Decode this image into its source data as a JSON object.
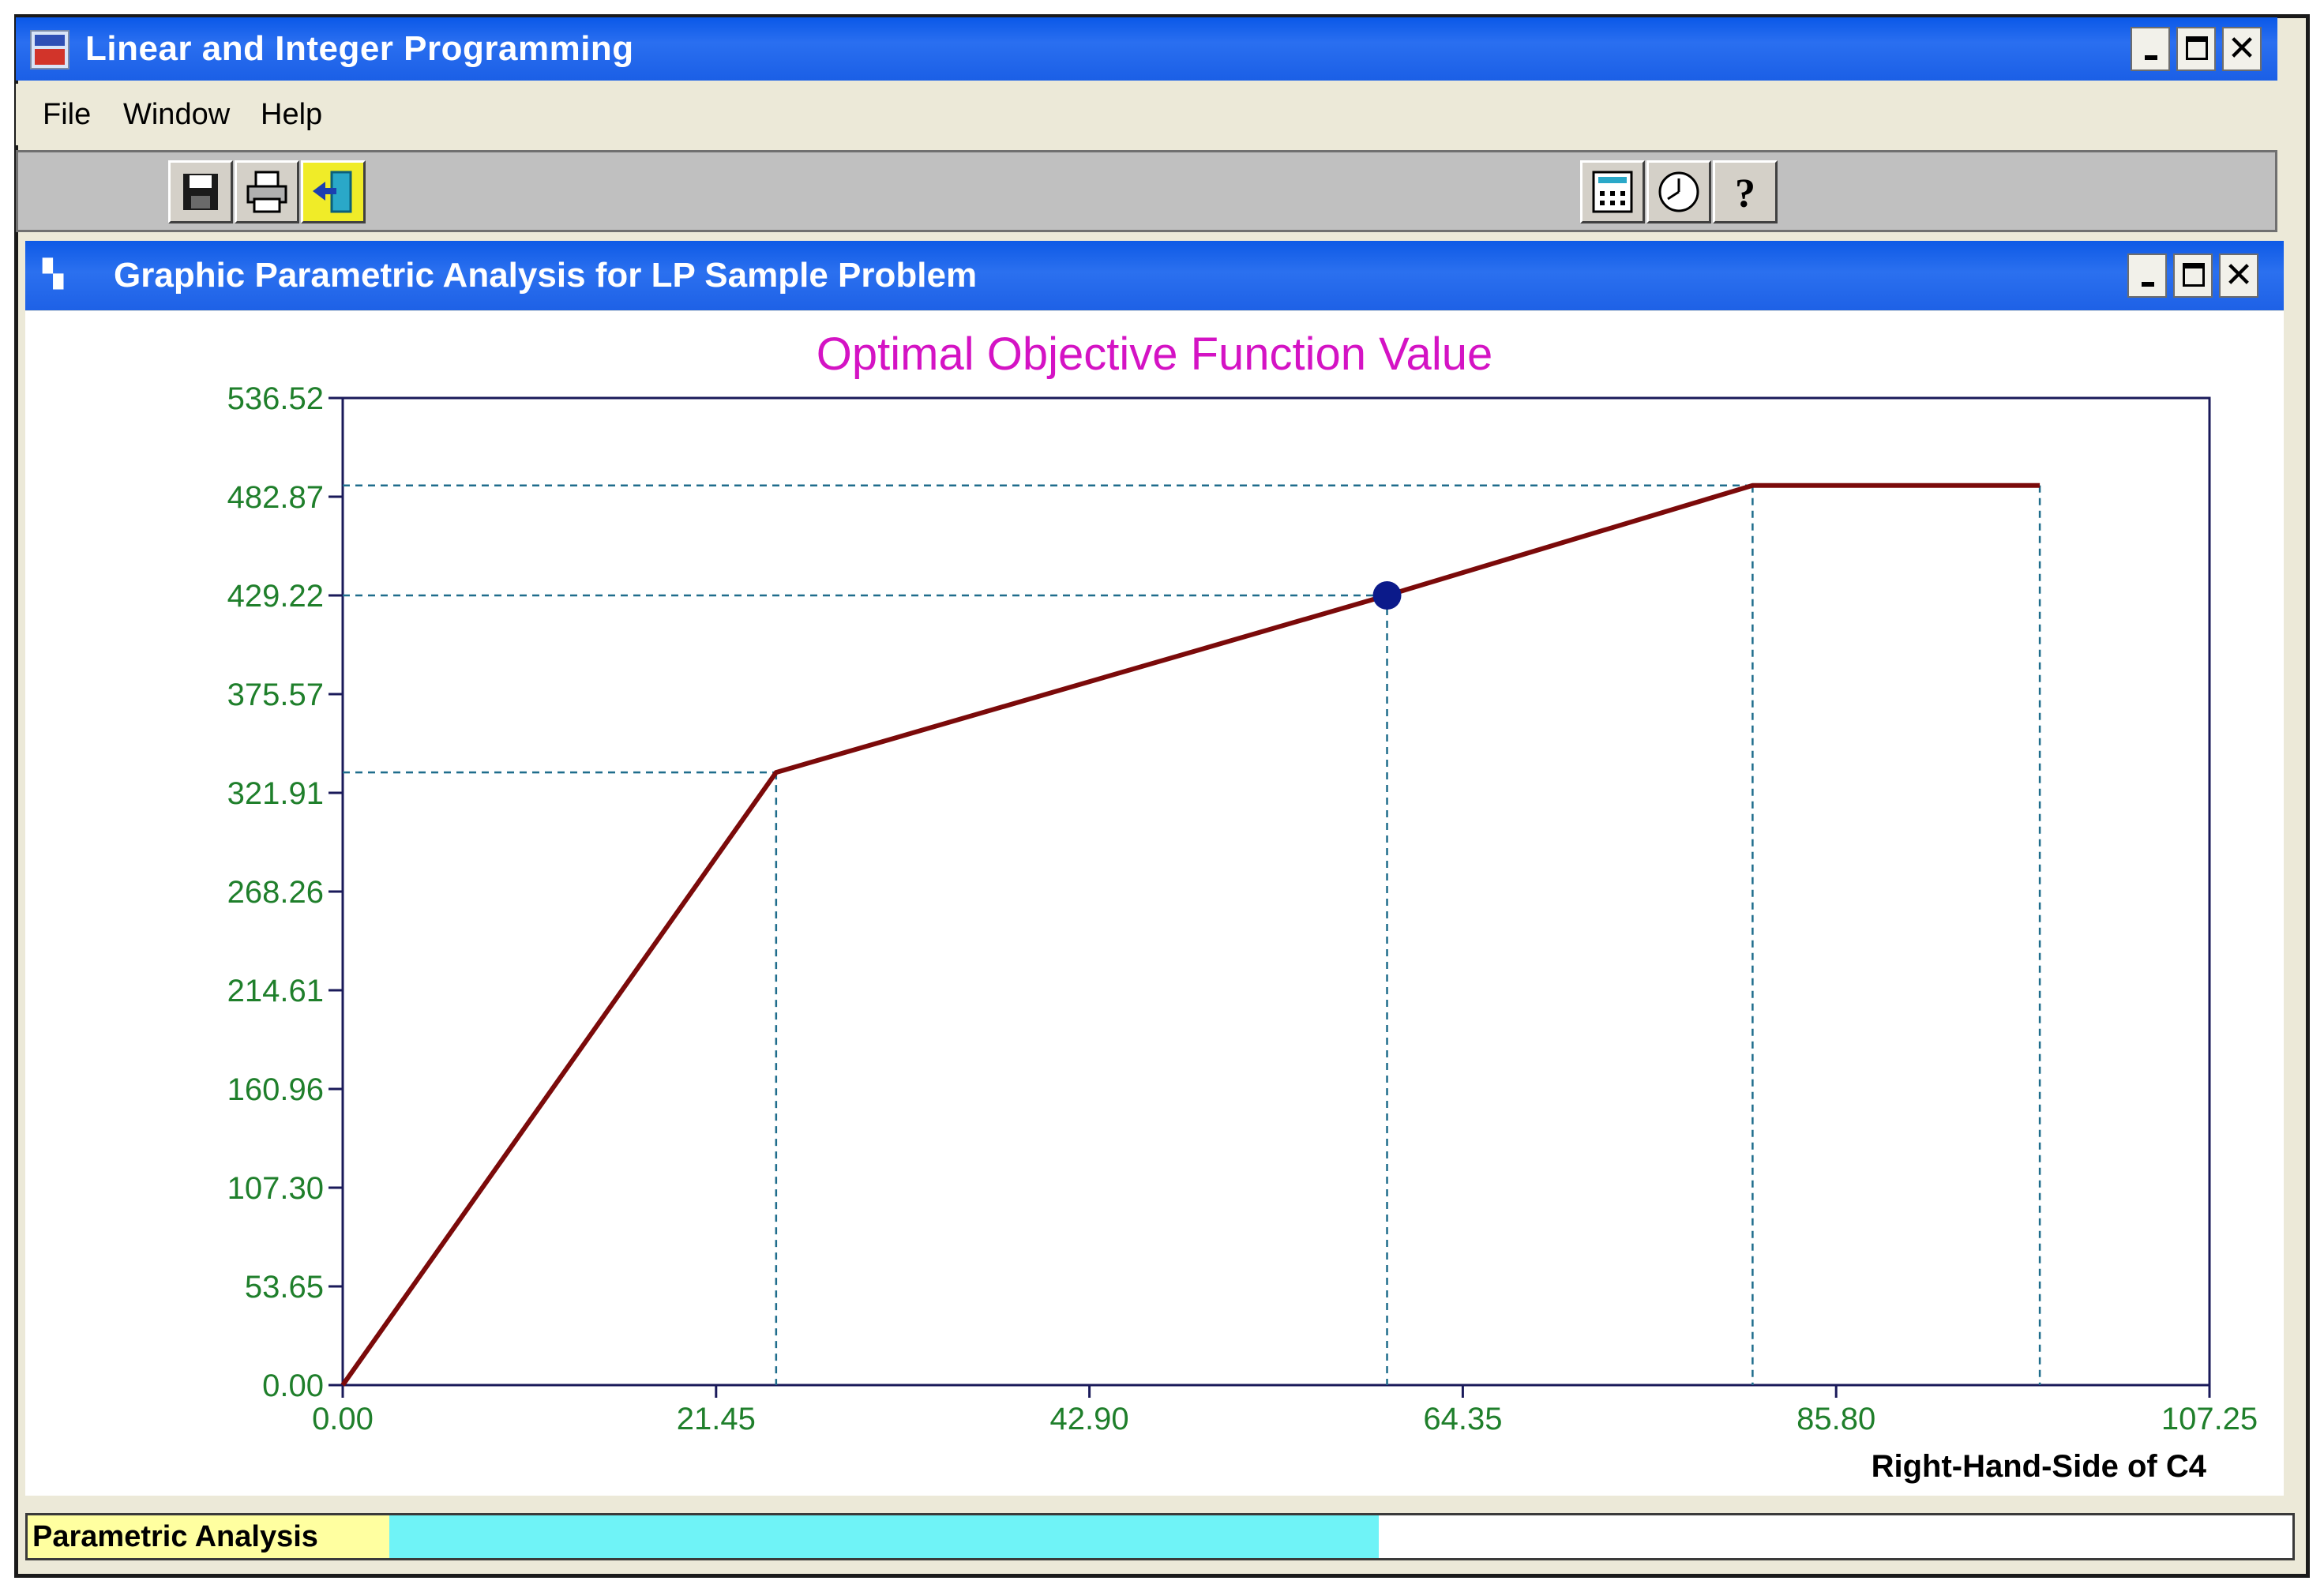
{
  "window": {
    "title": "Linear and Integer Programming"
  },
  "menu": {
    "items": [
      "File",
      "Window",
      "Help"
    ]
  },
  "toolbar": {
    "left_icons": [
      "save-icon",
      "print-icon",
      "exit-icon"
    ],
    "right_icons": [
      "calculator-icon",
      "clock-icon",
      "help-icon"
    ]
  },
  "child_window": {
    "title": "Graphic Parametric Analysis for LP Sample Problem"
  },
  "chart_data": {
    "type": "line",
    "title": "Optimal Objective Function Value",
    "xlabel": "Right-Hand-Side of C4",
    "ylabel": "",
    "xlim": [
      0,
      107.25
    ],
    "ylim": [
      0,
      536.52
    ],
    "x_ticks": [
      "0.00",
      "21.45",
      "42.90",
      "64.35",
      "85.80",
      "107.25"
    ],
    "y_ticks": [
      "536.52",
      "482.87",
      "429.22",
      "375.57",
      "321.91",
      "268.26",
      "214.61",
      "160.96",
      "107.30",
      "53.65",
      "0.00"
    ],
    "series": [
      {
        "points": [
          [
            0,
            0
          ],
          [
            24.9,
            333
          ],
          [
            60.0,
            429.22
          ],
          [
            81.0,
            489
          ],
          [
            97.5,
            489
          ]
        ]
      }
    ],
    "highlight_point": [
      60.0,
      429.22
    ],
    "reference_lines": {
      "vertical_x": [
        24.9,
        60.0,
        81.0,
        97.5
      ],
      "horizontal_y": [
        333,
        429.22,
        489
      ]
    },
    "colors": {
      "line": "#7b0a0a",
      "marker": "#0b1a8a",
      "ticks": "#1f7f2b",
      "title": "#d413c4",
      "guides": "#1f6d8c"
    }
  },
  "status": {
    "label": "Parametric Analysis",
    "progress": 0.52
  }
}
